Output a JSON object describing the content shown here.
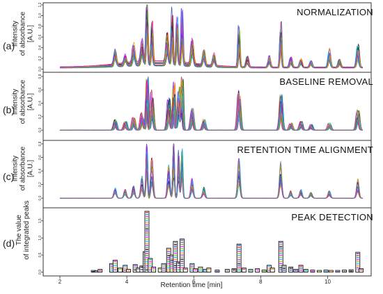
{
  "chart_data": {
    "type": "line",
    "xlabel": "Retention time [min]",
    "x_ticks": [
      "2",
      "4",
      "6",
      "8",
      "10"
    ],
    "xlim": [
      1.5,
      11.3
    ],
    "panels": [
      {
        "label": "(a)",
        "title": "NORMALIZATION",
        "ylabel": [
          "Intensity",
          "of absorbance [A.U.]"
        ],
        "ylim": [
          -0.02,
          1.2
        ],
        "y_ticks": [
          "0.0",
          "0.2",
          "0.4",
          "0.6",
          "0.8",
          "1.0",
          "1.2"
        ],
        "baseline": 0.03,
        "peaks": [
          [
            3.65,
            0.28
          ],
          [
            3.95,
            0.16
          ],
          [
            4.2,
            0.35
          ],
          [
            4.45,
            0.45
          ],
          [
            4.6,
            1.2
          ],
          [
            4.75,
            0.7
          ],
          [
            5.2,
            0.55
          ],
          [
            5.35,
            0.95
          ],
          [
            5.5,
            0.85
          ],
          [
            5.65,
            1.0
          ],
          [
            5.95,
            0.45
          ],
          [
            6.3,
            0.3
          ],
          [
            6.6,
            0.22
          ],
          [
            7.35,
            0.78
          ],
          [
            7.6,
            0.2
          ],
          [
            8.25,
            0.22
          ],
          [
            8.6,
            0.8
          ],
          [
            8.9,
            0.18
          ],
          [
            9.2,
            0.16
          ],
          [
            9.5,
            0.12
          ],
          [
            10.05,
            0.35
          ],
          [
            10.35,
            0.15
          ],
          [
            10.9,
            0.42
          ]
        ]
      },
      {
        "label": "(b)",
        "title": "BASELINE REMOVAL",
        "ylabel": [
          "Intensity",
          "of absorbance [A.U.]"
        ],
        "ylim": [
          -0.05,
          0.8
        ],
        "y_ticks": [
          "0.0",
          "0.2",
          "0.4",
          "0.6",
          "0.8"
        ],
        "baseline": 0.0,
        "peaks": [
          [
            3.65,
            0.15
          ],
          [
            3.95,
            0.12
          ],
          [
            4.2,
            0.18
          ],
          [
            4.45,
            0.25
          ],
          [
            4.6,
            0.8
          ],
          [
            4.75,
            0.55
          ],
          [
            5.25,
            0.45
          ],
          [
            5.4,
            0.7
          ],
          [
            5.55,
            0.6
          ],
          [
            5.65,
            0.75
          ],
          [
            5.95,
            0.3
          ],
          [
            6.3,
            0.15
          ],
          [
            7.35,
            0.55
          ],
          [
            8.6,
            0.55
          ],
          [
            8.9,
            0.1
          ],
          [
            9.2,
            0.12
          ],
          [
            9.5,
            0.08
          ],
          [
            10.05,
            0.1
          ],
          [
            10.9,
            0.28
          ]
        ]
      },
      {
        "label": "(c)",
        "title": "RETENTION TIME ALIGNMENT",
        "ylabel": [
          "Intensity",
          "of absorbance [A.U.]"
        ],
        "ylim": [
          -0.05,
          0.8
        ],
        "y_ticks": [
          "0.0",
          "0.2",
          "0.4",
          "0.6",
          "0.8"
        ],
        "baseline": 0.0,
        "peaks": [
          [
            3.65,
            0.15
          ],
          [
            3.95,
            0.12
          ],
          [
            4.2,
            0.18
          ],
          [
            4.45,
            0.3
          ],
          [
            4.6,
            0.8
          ],
          [
            4.75,
            0.55
          ],
          [
            5.25,
            0.45
          ],
          [
            5.4,
            0.8
          ],
          [
            5.55,
            0.65
          ],
          [
            5.65,
            0.7
          ],
          [
            5.95,
            0.28
          ],
          [
            6.3,
            0.15
          ],
          [
            7.35,
            0.55
          ],
          [
            8.6,
            0.5
          ],
          [
            8.9,
            0.1
          ],
          [
            9.2,
            0.12
          ],
          [
            9.5,
            0.08
          ],
          [
            10.05,
            0.1
          ],
          [
            10.9,
            0.26
          ]
        ]
      },
      {
        "label": "(d)",
        "title": "PEAK DETECTION",
        "ylabel": [
          "The value",
          "of integrated peaks"
        ],
        "ylim": [
          -0.05,
          1.8
        ],
        "y_ticks": [
          "0.0",
          "0.5",
          "1.0",
          "1.5"
        ],
        "bars": [
          [
            3.0,
            0.05
          ],
          [
            3.1,
            0.04
          ],
          [
            3.2,
            0.08
          ],
          [
            3.55,
            0.25
          ],
          [
            3.65,
            0.35
          ],
          [
            3.8,
            0.12
          ],
          [
            3.95,
            0.2
          ],
          [
            4.05,
            0.08
          ],
          [
            4.25,
            0.22
          ],
          [
            4.35,
            0.12
          ],
          [
            4.45,
            0.18
          ],
          [
            4.55,
            0.6
          ],
          [
            4.6,
            1.78
          ],
          [
            4.7,
            0.4
          ],
          [
            4.8,
            0.15
          ],
          [
            5.0,
            0.12
          ],
          [
            5.1,
            0.25
          ],
          [
            5.25,
            0.7
          ],
          [
            5.35,
            0.5
          ],
          [
            5.45,
            0.9
          ],
          [
            5.55,
            0.3
          ],
          [
            5.65,
            0.97
          ],
          [
            5.75,
            0.12
          ],
          [
            5.95,
            0.25
          ],
          [
            6.05,
            0.1
          ],
          [
            6.2,
            0.15
          ],
          [
            6.35,
            0.08
          ],
          [
            6.45,
            0.12
          ],
          [
            6.7,
            0.06
          ],
          [
            7.0,
            0.08
          ],
          [
            7.2,
            0.1
          ],
          [
            7.35,
            0.82
          ],
          [
            7.5,
            0.12
          ],
          [
            7.7,
            0.08
          ],
          [
            7.9,
            0.1
          ],
          [
            8.1,
            0.06
          ],
          [
            8.25,
            0.2
          ],
          [
            8.35,
            0.12
          ],
          [
            8.6,
            0.9
          ],
          [
            8.7,
            0.2
          ],
          [
            8.9,
            0.15
          ],
          [
            9.05,
            0.08
          ],
          [
            9.2,
            0.2
          ],
          [
            9.35,
            0.08
          ],
          [
            9.55,
            0.06
          ],
          [
            9.75,
            0.05
          ],
          [
            9.95,
            0.06
          ],
          [
            10.1,
            0.05
          ],
          [
            10.3,
            0.05
          ],
          [
            10.5,
            0.06
          ],
          [
            10.7,
            0.07
          ],
          [
            10.9,
            0.58
          ],
          [
            11.0,
            0.1
          ]
        ]
      }
    ],
    "series_colors": [
      "#000000",
      "#1f3fbf",
      "#e6194b",
      "#00a896",
      "#ff00ff",
      "#7cc800",
      "#00b4ff",
      "#ff8c00",
      "#8a2be2",
      "#808080"
    ]
  }
}
